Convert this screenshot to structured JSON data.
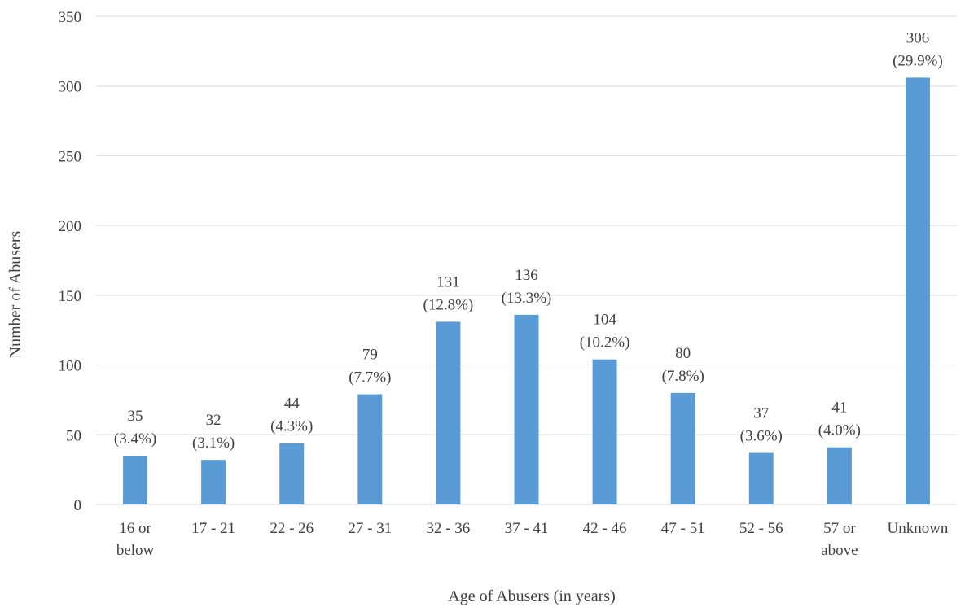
{
  "chart_data": {
    "type": "bar",
    "title": "",
    "xlabel": "Age of Abusers (in years)",
    "ylabel": "Number of Abusers",
    "ylim": [
      0,
      350
    ],
    "yticks": [
      0,
      50,
      100,
      150,
      200,
      250,
      300,
      350
    ],
    "grid": true,
    "legend": "none",
    "bar_color": "#5b9bd5",
    "categories": [
      [
        "16 or",
        "below"
      ],
      [
        "17 - 21"
      ],
      [
        "22 - 26"
      ],
      [
        "27 - 31"
      ],
      [
        "32 - 36"
      ],
      [
        "37 - 41"
      ],
      [
        "42 - 46"
      ],
      [
        "47 - 51"
      ],
      [
        "52 - 56"
      ],
      [
        "57 or",
        "above"
      ],
      [
        "Unknown"
      ]
    ],
    "values": [
      35,
      32,
      44,
      79,
      131,
      136,
      104,
      80,
      37,
      41,
      306
    ],
    "percent_labels": [
      "(3.4%)",
      "(3.1%)",
      "(4.3%)",
      "(7.7%)",
      "(12.8%)",
      "(13.3%)",
      "(10.2%)",
      "(7.8%)",
      "(3.6%)",
      "(4.0%)",
      "(29.9%)"
    ]
  }
}
